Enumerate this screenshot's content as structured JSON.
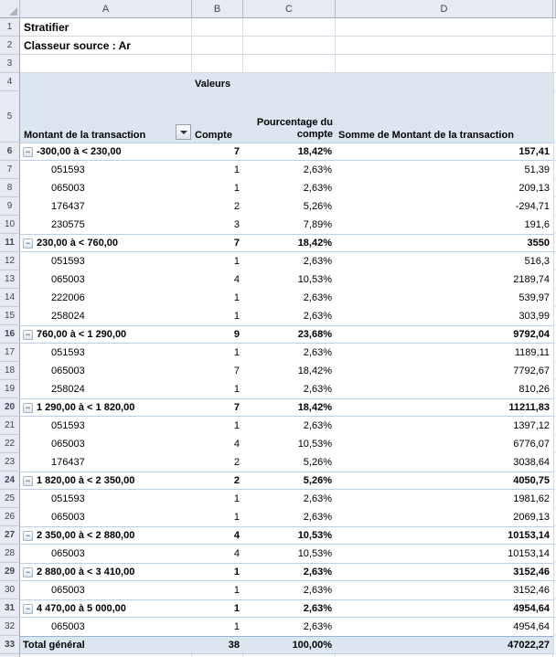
{
  "colors": {
    "band-blue": "#DCE6F1",
    "group-border": "#BCCFE4",
    "total-border": "#95B3D7",
    "gridline": "#D5DAE6",
    "head-bg": "#E7EAF2",
    "head-border": "#9FA6B6",
    "head-text": "#3F4658"
  },
  "sheet": {
    "columns": [
      "A",
      "B",
      "C",
      "D"
    ],
    "gutter_static": [
      "1",
      "2",
      "3",
      "4",
      "5"
    ],
    "row1": "Stratifier",
    "row2": "Classeur source : Ar",
    "valeurs_label": "Valeurs",
    "header": {
      "a": "Montant de la transaction",
      "b": "Compte",
      "c": "Pourcentage du compte",
      "d": "Somme de Montant de la transaction",
      "filter_icon": "filter-dropdown"
    },
    "rows": [
      {
        "n": "6",
        "group": true,
        "label": "-300,00 à < 230,00",
        "compte": "7",
        "pct": "18,42%",
        "somme": "157,41"
      },
      {
        "n": "7",
        "group": false,
        "label": "051593",
        "compte": "1",
        "pct": "2,63%",
        "somme": "51,39"
      },
      {
        "n": "8",
        "group": false,
        "label": "065003",
        "compte": "1",
        "pct": "2,63%",
        "somme": "209,13"
      },
      {
        "n": "9",
        "group": false,
        "label": "176437",
        "compte": "2",
        "pct": "5,26%",
        "somme": "-294,71"
      },
      {
        "n": "10",
        "group": false,
        "label": "230575",
        "compte": "3",
        "pct": "7,89%",
        "somme": "191,6"
      },
      {
        "n": "11",
        "group": true,
        "label": "230,00 à < 760,00",
        "compte": "7",
        "pct": "18,42%",
        "somme": "3550"
      },
      {
        "n": "12",
        "group": false,
        "label": "051593",
        "compte": "1",
        "pct": "2,63%",
        "somme": "516,3"
      },
      {
        "n": "13",
        "group": false,
        "label": "065003",
        "compte": "4",
        "pct": "10,53%",
        "somme": "2189,74"
      },
      {
        "n": "14",
        "group": false,
        "label": "222006",
        "compte": "1",
        "pct": "2,63%",
        "somme": "539,97"
      },
      {
        "n": "15",
        "group": false,
        "label": "258024",
        "compte": "1",
        "pct": "2,63%",
        "somme": "303,99"
      },
      {
        "n": "16",
        "group": true,
        "label": "760,00 à < 1 290,00",
        "compte": "9",
        "pct": "23,68%",
        "somme": "9792,04"
      },
      {
        "n": "17",
        "group": false,
        "label": "051593",
        "compte": "1",
        "pct": "2,63%",
        "somme": "1189,11"
      },
      {
        "n": "18",
        "group": false,
        "label": "065003",
        "compte": "7",
        "pct": "18,42%",
        "somme": "7792,67"
      },
      {
        "n": "19",
        "group": false,
        "label": "258024",
        "compte": "1",
        "pct": "2,63%",
        "somme": "810,26"
      },
      {
        "n": "20",
        "group": true,
        "label": "1 290,00 à < 1 820,00",
        "compte": "7",
        "pct": "18,42%",
        "somme": "11211,83"
      },
      {
        "n": "21",
        "group": false,
        "label": "051593",
        "compte": "1",
        "pct": "2,63%",
        "somme": "1397,12"
      },
      {
        "n": "22",
        "group": false,
        "label": "065003",
        "compte": "4",
        "pct": "10,53%",
        "somme": "6776,07"
      },
      {
        "n": "23",
        "group": false,
        "label": "176437",
        "compte": "2",
        "pct": "5,26%",
        "somme": "3038,64"
      },
      {
        "n": "24",
        "group": true,
        "label": "1 820,00 à < 2 350,00",
        "compte": "2",
        "pct": "5,26%",
        "somme": "4050,75"
      },
      {
        "n": "25",
        "group": false,
        "label": "051593",
        "compte": "1",
        "pct": "2,63%",
        "somme": "1981,62"
      },
      {
        "n": "26",
        "group": false,
        "label": "065003",
        "compte": "1",
        "pct": "2,63%",
        "somme": "2069,13"
      },
      {
        "n": "27",
        "group": true,
        "label": "2 350,00 à < 2 880,00",
        "compte": "4",
        "pct": "10,53%",
        "somme": "10153,14"
      },
      {
        "n": "28",
        "group": false,
        "label": "065003",
        "compte": "4",
        "pct": "10,53%",
        "somme": "10153,14"
      },
      {
        "n": "29",
        "group": true,
        "label": "2 880,00 à < 3 410,00",
        "compte": "1",
        "pct": "2,63%",
        "somme": "3152,46"
      },
      {
        "n": "30",
        "group": false,
        "label": "065003",
        "compte": "1",
        "pct": "2,63%",
        "somme": "3152,46"
      },
      {
        "n": "31",
        "group": true,
        "label": "4 470,00 à 5 000,00",
        "compte": "1",
        "pct": "2,63%",
        "somme": "4954,64"
      },
      {
        "n": "32",
        "group": false,
        "label": "065003",
        "compte": "1",
        "pct": "2,63%",
        "somme": "4954,64"
      }
    ],
    "total": {
      "n": "33",
      "label": "Total général",
      "compte": "38",
      "pct": "100,00%",
      "somme": "47022,27"
    },
    "collapse_glyph": "−"
  }
}
